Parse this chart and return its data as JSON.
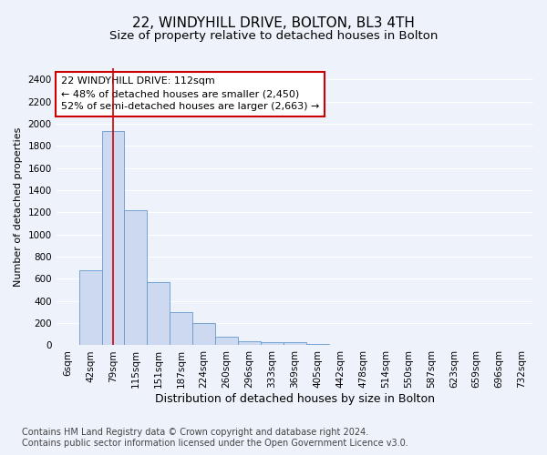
{
  "title": "22, WINDYHILL DRIVE, BOLTON, BL3 4TH",
  "subtitle": "Size of property relative to detached houses in Bolton",
  "xlabel": "Distribution of detached houses by size in Bolton",
  "ylabel": "Number of detached properties",
  "categories": [
    "6sqm",
    "42sqm",
    "79sqm",
    "115sqm",
    "151sqm",
    "187sqm",
    "224sqm",
    "260sqm",
    "296sqm",
    "333sqm",
    "369sqm",
    "405sqm",
    "442sqm",
    "478sqm",
    "514sqm",
    "550sqm",
    "587sqm",
    "623sqm",
    "659sqm",
    "696sqm",
    "732sqm"
  ],
  "values": [
    5,
    680,
    1930,
    1220,
    570,
    300,
    200,
    75,
    40,
    30,
    25,
    10,
    5,
    5,
    5,
    5,
    3,
    2,
    0,
    0,
    0
  ],
  "bar_color": "#ccd9f0",
  "bar_edge_color": "#6699cc",
  "highlight_bar_index": 2,
  "highlight_line_color": "#cc0000",
  "annotation_text": "22 WINDYHILL DRIVE: 112sqm\n← 48% of detached houses are smaller (2,450)\n52% of semi-detached houses are larger (2,663) →",
  "annotation_box_color": "#ffffff",
  "annotation_box_edge_color": "#cc0000",
  "ylim": [
    0,
    2500
  ],
  "yticks": [
    0,
    200,
    400,
    600,
    800,
    1000,
    1200,
    1400,
    1600,
    1800,
    2000,
    2200,
    2400
  ],
  "footer_line1": "Contains HM Land Registry data © Crown copyright and database right 2024.",
  "footer_line2": "Contains public sector information licensed under the Open Government Licence v3.0.",
  "background_color": "#eef2fb",
  "grid_color": "#ffffff",
  "title_fontsize": 11,
  "subtitle_fontsize": 9.5,
  "xlabel_fontsize": 9,
  "ylabel_fontsize": 8,
  "tick_fontsize": 7.5,
  "annotation_fontsize": 8,
  "footer_fontsize": 7
}
